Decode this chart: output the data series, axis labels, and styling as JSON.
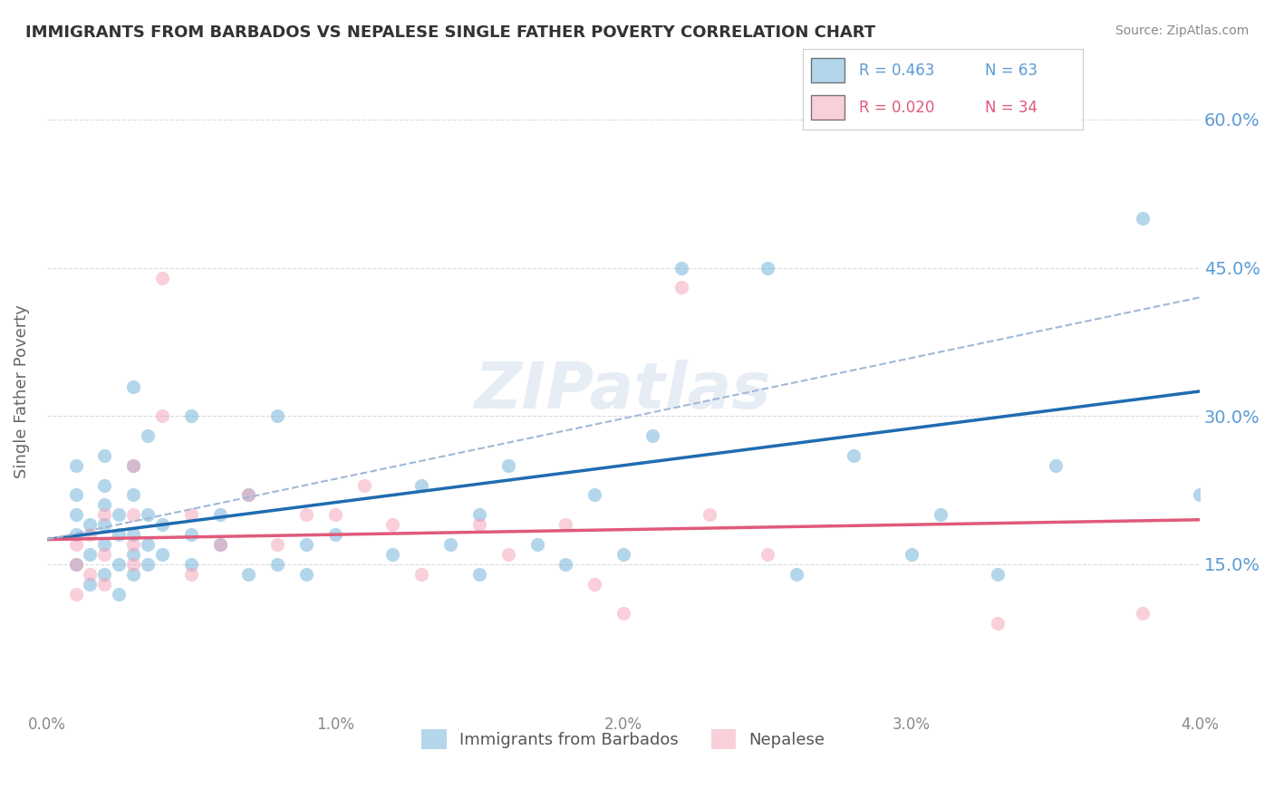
{
  "title": "IMMIGRANTS FROM BARBADOS VS NEPALESE SINGLE FATHER POVERTY CORRELATION CHART",
  "source": "Source: ZipAtlas.com",
  "xlabel": "",
  "ylabel": "Single Father Poverty",
  "xlim": [
    0.0,
    0.04
  ],
  "ylim": [
    0.0,
    0.65
  ],
  "xticks": [
    0.0,
    0.01,
    0.02,
    0.03,
    0.04
  ],
  "xtick_labels": [
    "0.0%",
    "1.0%",
    "2.0%",
    "3.0%",
    "4.0%"
  ],
  "ytick_positions": [
    0.15,
    0.3,
    0.45,
    0.6
  ],
  "ytick_labels": [
    "15.0%",
    "30.0%",
    "45.0%",
    "60.0%"
  ],
  "watermark": "ZIPatlas",
  "legend_r1": "R = 0.463",
  "legend_n1": "N = 63",
  "legend_r2": "R = 0.020",
  "legend_n2": "N = 34",
  "blue_color": "#6aaed6",
  "pink_color": "#f4a0b5",
  "blue_line_color": "#1f6cb0",
  "pink_line_color": "#e05a7a",
  "dashed_line_color": "#a0b8d8",
  "title_color": "#333333",
  "axis_label_color": "#555555",
  "tick_label_color_blue": "#6aaed6",
  "tick_label_color_right": "#6aaed6",
  "grid_color": "#cccccc",
  "background_color": "#ffffff",
  "blue_scatter_x": [
    0.001,
    0.001,
    0.001,
    0.001,
    0.001,
    0.0015,
    0.0015,
    0.0015,
    0.002,
    0.002,
    0.002,
    0.002,
    0.002,
    0.002,
    0.0025,
    0.0025,
    0.0025,
    0.0025,
    0.003,
    0.003,
    0.003,
    0.003,
    0.003,
    0.003,
    0.0035,
    0.0035,
    0.0035,
    0.0035,
    0.004,
    0.004,
    0.005,
    0.005,
    0.005,
    0.006,
    0.006,
    0.007,
    0.007,
    0.008,
    0.008,
    0.009,
    0.009,
    0.01,
    0.012,
    0.013,
    0.014,
    0.015,
    0.015,
    0.016,
    0.017,
    0.018,
    0.019,
    0.02,
    0.021,
    0.022,
    0.025,
    0.026,
    0.028,
    0.03,
    0.031,
    0.033,
    0.035,
    0.038,
    0.04
  ],
  "blue_scatter_y": [
    0.15,
    0.18,
    0.2,
    0.22,
    0.25,
    0.13,
    0.16,
    0.19,
    0.14,
    0.17,
    0.19,
    0.21,
    0.23,
    0.26,
    0.12,
    0.15,
    0.18,
    0.2,
    0.14,
    0.16,
    0.18,
    0.22,
    0.25,
    0.33,
    0.15,
    0.17,
    0.2,
    0.28,
    0.16,
    0.19,
    0.15,
    0.18,
    0.3,
    0.17,
    0.2,
    0.14,
    0.22,
    0.15,
    0.3,
    0.14,
    0.17,
    0.18,
    0.16,
    0.23,
    0.17,
    0.14,
    0.2,
    0.25,
    0.17,
    0.15,
    0.22,
    0.16,
    0.28,
    0.45,
    0.45,
    0.14,
    0.26,
    0.16,
    0.2,
    0.14,
    0.25,
    0.5,
    0.22
  ],
  "pink_scatter_x": [
    0.001,
    0.001,
    0.001,
    0.0015,
    0.0015,
    0.002,
    0.002,
    0.002,
    0.003,
    0.003,
    0.003,
    0.003,
    0.004,
    0.004,
    0.005,
    0.005,
    0.006,
    0.007,
    0.008,
    0.009,
    0.01,
    0.011,
    0.012,
    0.013,
    0.015,
    0.016,
    0.018,
    0.019,
    0.02,
    0.022,
    0.023,
    0.025,
    0.033,
    0.038
  ],
  "pink_scatter_y": [
    0.12,
    0.15,
    0.17,
    0.14,
    0.18,
    0.13,
    0.16,
    0.2,
    0.15,
    0.17,
    0.2,
    0.25,
    0.3,
    0.44,
    0.14,
    0.2,
    0.17,
    0.22,
    0.17,
    0.2,
    0.2,
    0.23,
    0.19,
    0.14,
    0.19,
    0.16,
    0.19,
    0.13,
    0.1,
    0.43,
    0.2,
    0.16,
    0.09,
    0.1
  ],
  "blue_trend_x": [
    0.0,
    0.04
  ],
  "blue_trend_y": [
    0.175,
    0.325
  ],
  "pink_trend_x": [
    0.0,
    0.04
  ],
  "pink_trend_y": [
    0.175,
    0.195
  ],
  "dashed_trend_x": [
    0.0,
    0.04
  ],
  "dashed_trend_y": [
    0.175,
    0.42
  ]
}
